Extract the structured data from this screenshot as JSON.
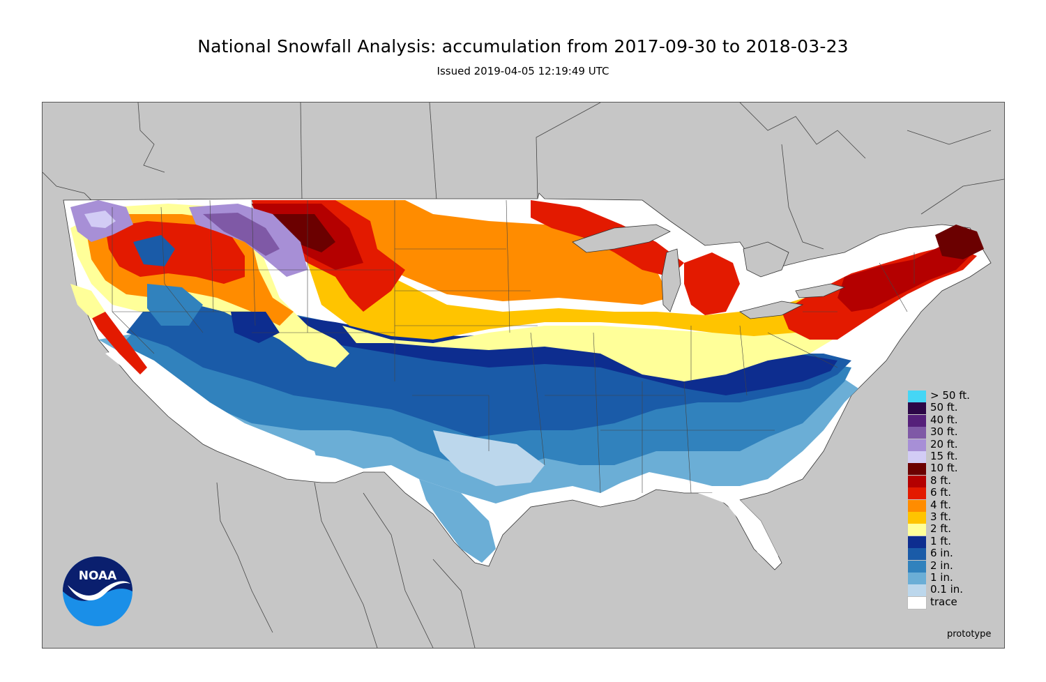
{
  "header": {
    "title": "National Snowfall Analysis: accumulation from 2017-09-30 to 2018-03-23",
    "subtitle": "Issued 2019-04-05 12:19:49 UTC"
  },
  "logo": {
    "text": "NOAA",
    "icon": "noaa-logo-icon"
  },
  "note": "prototype",
  "colors": {
    "ocean_land": "#c6c6c6",
    "trace": "#ffffff",
    "tenth_in": "#bcd7ec",
    "one_in": "#6baed6",
    "two_in": "#3182bd",
    "six_in": "#1a5ba8",
    "one_ft": "#0d2d8f",
    "two_ft": "#ffff99",
    "three_ft": "#ffc400",
    "four_ft": "#ff8c00",
    "six_ft": "#e31a00",
    "eight_ft": "#b40000",
    "ten_ft": "#6b0000",
    "fifteen_ft": "#d2ccf5",
    "twenty_ft": "#a78fd6",
    "thirty_ft": "#7f59a6",
    "forty_ft": "#55207a",
    "fifty_ft": "#2c0747",
    "over_fifty_ft": "#45d6f5"
  },
  "legend": [
    {
      "label": "> 50 ft.",
      "color": "#45d6f5"
    },
    {
      "label": "50 ft.",
      "color": "#2c0747"
    },
    {
      "label": "40 ft.",
      "color": "#55207a"
    },
    {
      "label": "30 ft.",
      "color": "#7f59a6"
    },
    {
      "label": "20 ft.",
      "color": "#a78fd6"
    },
    {
      "label": "15 ft.",
      "color": "#d2ccf5"
    },
    {
      "label": "10 ft.",
      "color": "#6b0000"
    },
    {
      "label": "8 ft.",
      "color": "#b40000"
    },
    {
      "label": "6 ft.",
      "color": "#e31a00"
    },
    {
      "label": "4 ft.",
      "color": "#ff8c00"
    },
    {
      "label": "3 ft.",
      "color": "#ffc400"
    },
    {
      "label": "2 ft.",
      "color": "#ffff99"
    },
    {
      "label": "1 ft.",
      "color": "#0d2d8f"
    },
    {
      "label": "6 in.",
      "color": "#1a5ba8"
    },
    {
      "label": "2 in.",
      "color": "#3182bd"
    },
    {
      "label": "1 in.",
      "color": "#6baed6"
    },
    {
      "label": "0.1 in.",
      "color": "#bcd7ec"
    },
    {
      "label": "trace",
      "color": "#ffffff"
    }
  ]
}
